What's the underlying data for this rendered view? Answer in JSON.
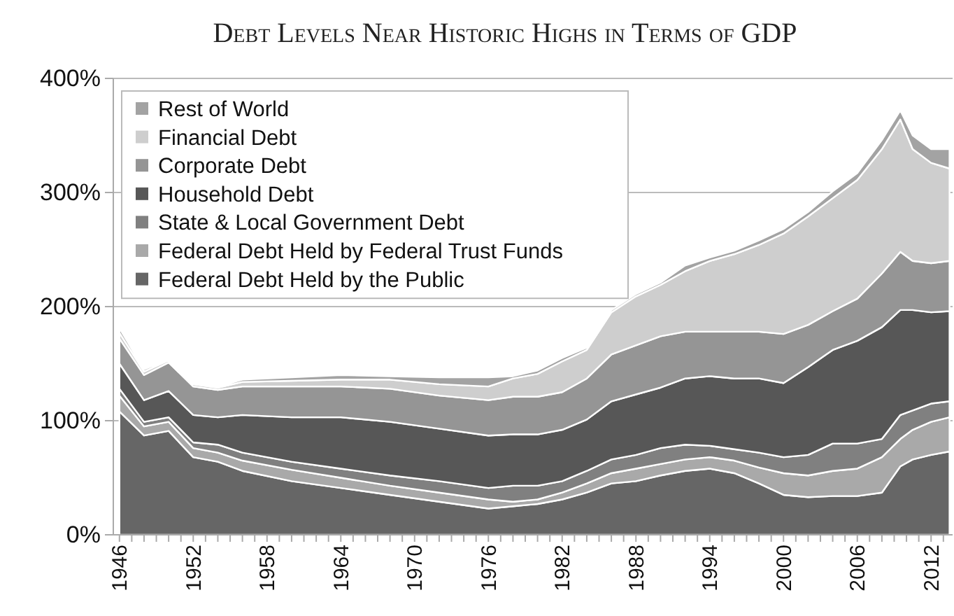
{
  "chart_data": {
    "type": "area",
    "stacked": true,
    "title": "Debt Levels Near Historic Highs in Terms of GDP",
    "x": [
      1946,
      1948,
      1950,
      1952,
      1954,
      1956,
      1960,
      1964,
      1968,
      1972,
      1976,
      1978,
      1980,
      1982,
      1984,
      1986,
      1988,
      1990,
      1992,
      1994,
      1996,
      1998,
      2000,
      2002,
      2004,
      2006,
      2008,
      2009.5,
      2010.5,
      2012,
      2013.5
    ],
    "series": [
      {
        "name": "Federal Debt Held by the Public",
        "color": "#666666",
        "values": [
          108,
          87,
          91,
          68,
          64,
          56,
          47,
          41,
          35,
          29,
          23,
          25,
          27,
          31,
          37,
          45,
          47,
          52,
          56,
          58,
          54,
          45,
          35,
          33,
          34,
          34,
          37,
          60,
          66,
          70,
          73
        ]
      },
      {
        "name": "Federal Debt Held by Federal Trust Funds",
        "color": "#a9a9a9",
        "values": [
          14,
          8,
          8,
          8,
          8,
          9,
          10,
          9,
          8,
          8,
          8,
          4,
          4,
          6,
          8,
          9,
          11,
          10,
          10,
          10,
          11,
          14,
          19,
          19,
          22,
          24,
          31,
          24,
          26,
          29,
          30
        ]
      },
      {
        "name": "State & Local Government Debt",
        "color": "#808080",
        "values": [
          6,
          4,
          4,
          5,
          7,
          7,
          7,
          8,
          9,
          10,
          10,
          14,
          12,
          10,
          11,
          12,
          12,
          14,
          13,
          10,
          10,
          13,
          14,
          18,
          24,
          22,
          16,
          21,
          17,
          16,
          14
        ]
      },
      {
        "name": "Household Debt",
        "color": "#575757",
        "values": [
          22,
          19,
          23,
          24,
          24,
          33,
          39,
          45,
          47,
          46,
          46,
          45,
          45,
          45,
          45,
          51,
          53,
          53,
          58,
          61,
          62,
          65,
          65,
          77,
          82,
          90,
          98,
          92,
          88,
          80,
          79
        ]
      },
      {
        "name": "Corporate Debt",
        "color": "#959595",
        "values": [
          22,
          22,
          25,
          25,
          24,
          25,
          27,
          27,
          29,
          29,
          31,
          33,
          33,
          33,
          36,
          41,
          43,
          45,
          41,
          39,
          41,
          41,
          43,
          37,
          34,
          37,
          47,
          51,
          43,
          43,
          44
        ]
      },
      {
        "name": "Financial Debt",
        "color": "#cecece",
        "values": [
          5,
          3,
          2,
          2,
          2,
          4,
          5,
          6,
          8,
          10,
          12,
          16,
          20,
          27,
          25,
          37,
          43,
          45,
          53,
          62,
          68,
          76,
          88,
          95,
          99,
          104,
          109,
          116,
          98,
          88,
          81
        ]
      },
      {
        "name": "Rest of World",
        "color": "#a3a3a3",
        "values": [
          4,
          2,
          1,
          1,
          1,
          2,
          3,
          4,
          3,
          6,
          8,
          2,
          3,
          3,
          2,
          2,
          2,
          2,
          5,
          3,
          3,
          4,
          4,
          4,
          6,
          6,
          8,
          8,
          12,
          12,
          17
        ]
      }
    ],
    "xlim": [
      1945.5,
      2013.75
    ],
    "xticks": [
      1946,
      {
        "value": 1947,
        "label": null
      },
      {
        "value": 1948,
        "label": null
      },
      {
        "value": 1949,
        "label": null
      },
      {
        "value": 1950,
        "label": null
      },
      {
        "value": 1951,
        "label": null
      },
      1952,
      {
        "value": 1953,
        "label": null
      },
      {
        "value": 1954,
        "label": null
      },
      {
        "value": 1955,
        "label": null
      },
      {
        "value": 1956,
        "label": null
      },
      {
        "value": 1957,
        "label": null
      },
      1958,
      {
        "value": 1959,
        "label": null
      },
      {
        "value": 1960,
        "label": null
      },
      {
        "value": 1961,
        "label": null
      },
      {
        "value": 1962,
        "label": null
      },
      {
        "value": 1963,
        "label": null
      },
      1964,
      {
        "value": 1965,
        "label": null
      },
      {
        "value": 1966,
        "label": null
      },
      {
        "value": 1967,
        "label": null
      },
      {
        "value": 1968,
        "label": null
      },
      {
        "value": 1969,
        "label": null
      },
      1970,
      {
        "value": 1971,
        "label": null
      },
      {
        "value": 1972,
        "label": null
      },
      {
        "value": 1973,
        "label": null
      },
      {
        "value": 1974,
        "label": null
      },
      {
        "value": 1975,
        "label": null
      },
      1976,
      {
        "value": 1977,
        "label": null
      },
      {
        "value": 1978,
        "label": null
      },
      {
        "value": 1979,
        "label": null
      },
      {
        "value": 1980,
        "label": null
      },
      {
        "value": 1981,
        "label": null
      },
      1982,
      {
        "value": 1983,
        "label": null
      },
      {
        "value": 1984,
        "label": null
      },
      {
        "value": 1985,
        "label": null
      },
      {
        "value": 1986,
        "label": null
      },
      {
        "value": 1987,
        "label": null
      },
      1988,
      {
        "value": 1989,
        "label": null
      },
      {
        "value": 1990,
        "label": null
      },
      {
        "value": 1991,
        "label": null
      },
      {
        "value": 1992,
        "label": null
      },
      {
        "value": 1993,
        "label": null
      },
      1994,
      {
        "value": 1995,
        "label": null
      },
      {
        "value": 1996,
        "label": null
      },
      {
        "value": 1997,
        "label": null
      },
      {
        "value": 1998,
        "label": null
      },
      {
        "value": 1999,
        "label": null
      },
      2000,
      {
        "value": 2001,
        "label": null
      },
      {
        "value": 2002,
        "label": null
      },
      {
        "value": 2003,
        "label": null
      },
      {
        "value": 2004,
        "label": null
      },
      {
        "value": 2005,
        "label": null
      },
      2006,
      {
        "value": 2007,
        "label": null
      },
      {
        "value": 2008,
        "label": null
      },
      {
        "value": 2009,
        "label": null
      },
      {
        "value": 2010,
        "label": null
      },
      {
        "value": 2011,
        "label": null
      },
      2012,
      {
        "value": 2013,
        "label": null
      }
    ],
    "ylim": [
      0,
      400
    ],
    "yticks": [
      {
        "value": 0,
        "label": "0%"
      },
      {
        "value": 100,
        "label": "100%"
      },
      {
        "value": 200,
        "label": "200%"
      },
      {
        "value": 300,
        "label": "300%"
      },
      {
        "value": 400,
        "label": "400%"
      }
    ],
    "grid": "y",
    "legend": "top left"
  }
}
